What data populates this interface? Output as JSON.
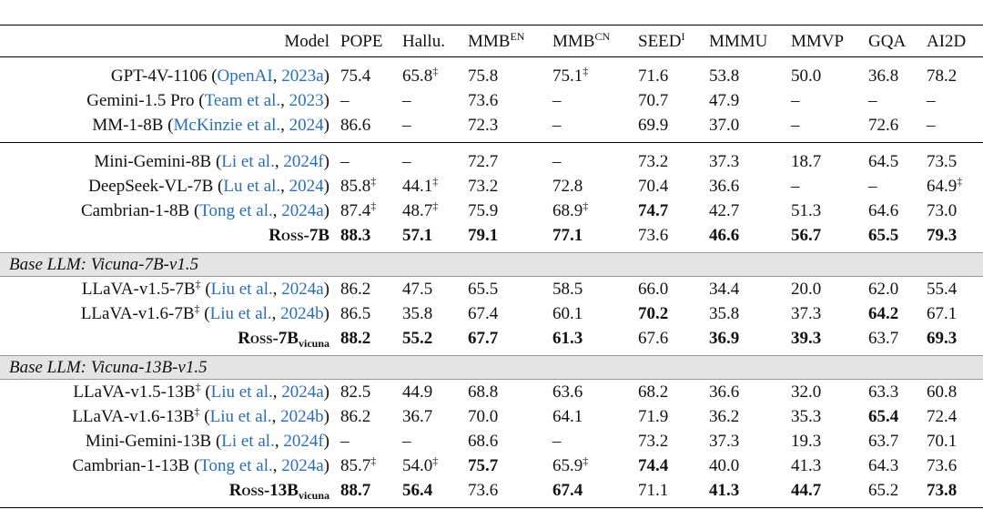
{
  "header": [
    [
      "Model"
    ],
    [
      "POPE"
    ],
    [
      "Hallu."
    ],
    [
      "MMB",
      {
        "text": "EN",
        "style": "sup"
      }
    ],
    [
      "MMB",
      {
        "text": "CN",
        "style": "sup"
      }
    ],
    [
      "SEED",
      {
        "text": "I",
        "style": "sup"
      }
    ],
    [
      "MMMU"
    ],
    [
      "MMVP"
    ],
    [
      "GQA"
    ],
    [
      "AI2D"
    ]
  ],
  "blocks": [
    {
      "rows": [
        {
          "model": [
            "GPT-4V-1106 (",
            {
              "text": "OpenAI",
              "style": "link"
            },
            ", ",
            {
              "text": "2023a",
              "style": "link"
            },
            ")"
          ],
          "values": [
            "75.4",
            {
              "text": "65.8",
              "sup": "‡"
            },
            "75.8",
            {
              "text": "75.1",
              "sup": "‡"
            },
            "71.6",
            "53.8",
            "50.0",
            "36.8",
            "78.2"
          ]
        },
        {
          "model": [
            "Gemini-1.5 Pro (",
            {
              "text": "Team et al.",
              "style": "link"
            },
            ", ",
            {
              "text": "2023",
              "style": "link"
            },
            ")"
          ],
          "values": [
            "–",
            "–",
            "73.6",
            "–",
            "70.7",
            "47.9",
            "–",
            "–",
            "–"
          ]
        },
        {
          "model": [
            "MM-1-8B (",
            {
              "text": "McKinzie et al.",
              "style": "link"
            },
            ", ",
            {
              "text": "2024",
              "style": "link"
            },
            ")"
          ],
          "values": [
            "86.6",
            "–",
            "72.3",
            "–",
            "69.9",
            "37.0",
            "–",
            "72.6",
            "–"
          ]
        }
      ]
    },
    {
      "rows": [
        {
          "model": [
            "Mini-Gemini-8B (",
            {
              "text": "Li et al.",
              "style": "link"
            },
            ", ",
            {
              "text": "2024f",
              "style": "link"
            },
            ")"
          ],
          "values": [
            "–",
            "–",
            "72.7",
            "–",
            "73.2",
            "37.3",
            "18.7",
            "64.5",
            "73.5"
          ]
        },
        {
          "model": [
            "DeepSeek-VL-7B (",
            {
              "text": "Lu et al.",
              "style": "link"
            },
            ", ",
            {
              "text": "2024",
              "style": "link"
            },
            ")"
          ],
          "values": [
            {
              "text": "85.8",
              "sup": "‡"
            },
            {
              "text": "44.1",
              "sup": "‡"
            },
            "73.2",
            "72.8",
            "70.4",
            "36.6",
            "–",
            "–",
            {
              "text": "64.9",
              "sup": "‡"
            }
          ]
        },
        {
          "model": [
            "Cambrian-1-8B (",
            {
              "text": "Tong et al.",
              "style": "link"
            },
            ", ",
            {
              "text": "2024a",
              "style": "link"
            },
            ")"
          ],
          "values": [
            {
              "text": "87.4",
              "sup": "‡"
            },
            {
              "text": "48.7",
              "sup": "‡"
            },
            "75.9",
            {
              "text": "68.9",
              "sup": "‡"
            },
            {
              "text": "74.7",
              "bold": true
            },
            "42.7",
            "51.3",
            "64.6",
            "73.0"
          ]
        },
        {
          "bold": true,
          "model": [
            {
              "text": "Ross",
              "style": "sc"
            },
            "-7B"
          ],
          "values": [
            {
              "text": "88.3",
              "bold": true
            },
            {
              "text": "57.1",
              "bold": true
            },
            {
              "text": "79.1",
              "bold": true
            },
            {
              "text": "77.1",
              "bold": true
            },
            "73.6",
            {
              "text": "46.6",
              "bold": true
            },
            {
              "text": "56.7",
              "bold": true
            },
            {
              "text": "65.5",
              "bold": true
            },
            {
              "text": "79.3",
              "bold": true
            }
          ]
        }
      ]
    },
    {
      "label": "Base LLM: Vicuna-7B-v1.5",
      "rows": [
        {
          "model": [
            "LLaVA-v1.5-7B",
            {
              "text": "‡",
              "style": "sup"
            },
            " (",
            {
              "text": "Liu et al.",
              "style": "link"
            },
            ", ",
            {
              "text": "2024a",
              "style": "link"
            },
            ")"
          ],
          "values": [
            "86.2",
            "47.5",
            "65.5",
            "58.5",
            "66.0",
            "34.4",
            "20.0",
            "62.0",
            "55.4"
          ]
        },
        {
          "model": [
            "LLaVA-v1.6-7B",
            {
              "text": "‡",
              "style": "sup"
            },
            " (",
            {
              "text": "Liu et al.",
              "style": "link"
            },
            ", ",
            {
              "text": "2024b",
              "style": "link"
            },
            ")"
          ],
          "values": [
            "86.5",
            "35.8",
            "67.4",
            "60.1",
            {
              "text": "70.2",
              "bold": true
            },
            "35.8",
            "37.3",
            {
              "text": "64.2",
              "bold": true
            },
            "67.1"
          ]
        },
        {
          "bold": true,
          "model": [
            {
              "text": "Ross",
              "style": "sc"
            },
            "-7B",
            {
              "text": "vicuna",
              "style": "sub"
            }
          ],
          "values": [
            {
              "text": "88.2",
              "bold": true
            },
            {
              "text": "55.2",
              "bold": true
            },
            {
              "text": "67.7",
              "bold": true
            },
            {
              "text": "61.3",
              "bold": true
            },
            "67.6",
            {
              "text": "36.9",
              "bold": true
            },
            {
              "text": "39.3",
              "bold": true
            },
            "63.7",
            {
              "text": "69.3",
              "bold": true
            }
          ]
        }
      ]
    },
    {
      "label": "Base LLM: Vicuna-13B-v1.5",
      "rows": [
        {
          "model": [
            "LLaVA-v1.5-13B",
            {
              "text": "‡",
              "style": "sup"
            },
            " (",
            {
              "text": "Liu et al.",
              "style": "link"
            },
            ", ",
            {
              "text": "2024a",
              "style": "link"
            },
            ")"
          ],
          "values": [
            "82.5",
            "44.9",
            "68.8",
            "63.6",
            "68.2",
            "36.6",
            "32.0",
            "63.3",
            "60.8"
          ]
        },
        {
          "model": [
            "LLaVA-v1.6-13B",
            {
              "text": "‡",
              "style": "sup"
            },
            " (",
            {
              "text": "Liu et al.",
              "style": "link"
            },
            ", ",
            {
              "text": "2024b",
              "style": "link"
            },
            ")"
          ],
          "values": [
            "86.2",
            "36.7",
            "70.0",
            "64.1",
            "71.9",
            "36.2",
            "35.3",
            {
              "text": "65.4",
              "bold": true
            },
            "72.4"
          ]
        },
        {
          "model": [
            "Mini-Gemini-13B (",
            {
              "text": "Li et al.",
              "style": "link"
            },
            ", ",
            {
              "text": "2024f",
              "style": "link"
            },
            ")"
          ],
          "values": [
            "–",
            "–",
            "68.6",
            "–",
            "73.2",
            "37.3",
            "19.3",
            "63.7",
            "70.1"
          ]
        },
        {
          "model": [
            "Cambrian-1-13B (",
            {
              "text": "Tong et al.",
              "style": "link"
            },
            ", ",
            {
              "text": "2024a",
              "style": "link"
            },
            ")"
          ],
          "values": [
            {
              "text": "85.7",
              "sup": "‡"
            },
            {
              "text": "54.0",
              "sup": "‡"
            },
            {
              "text": "75.7",
              "bold": true
            },
            {
              "text": "65.9",
              "sup": "‡"
            },
            {
              "text": "74.4",
              "bold": true
            },
            "40.0",
            "41.3",
            "64.3",
            "73.6"
          ]
        },
        {
          "bold": true,
          "model": [
            {
              "text": "Ross",
              "style": "sc"
            },
            "-13B",
            {
              "text": "vicuna",
              "style": "sub"
            }
          ],
          "values": [
            {
              "text": "88.7",
              "bold": true
            },
            {
              "text": "56.4",
              "bold": true
            },
            "73.6",
            {
              "text": "67.4",
              "bold": true
            },
            "71.1",
            {
              "text": "41.3",
              "bold": true
            },
            {
              "text": "44.7",
              "bold": true
            },
            "65.2",
            {
              "text": "73.8",
              "bold": true
            }
          ]
        }
      ]
    }
  ]
}
